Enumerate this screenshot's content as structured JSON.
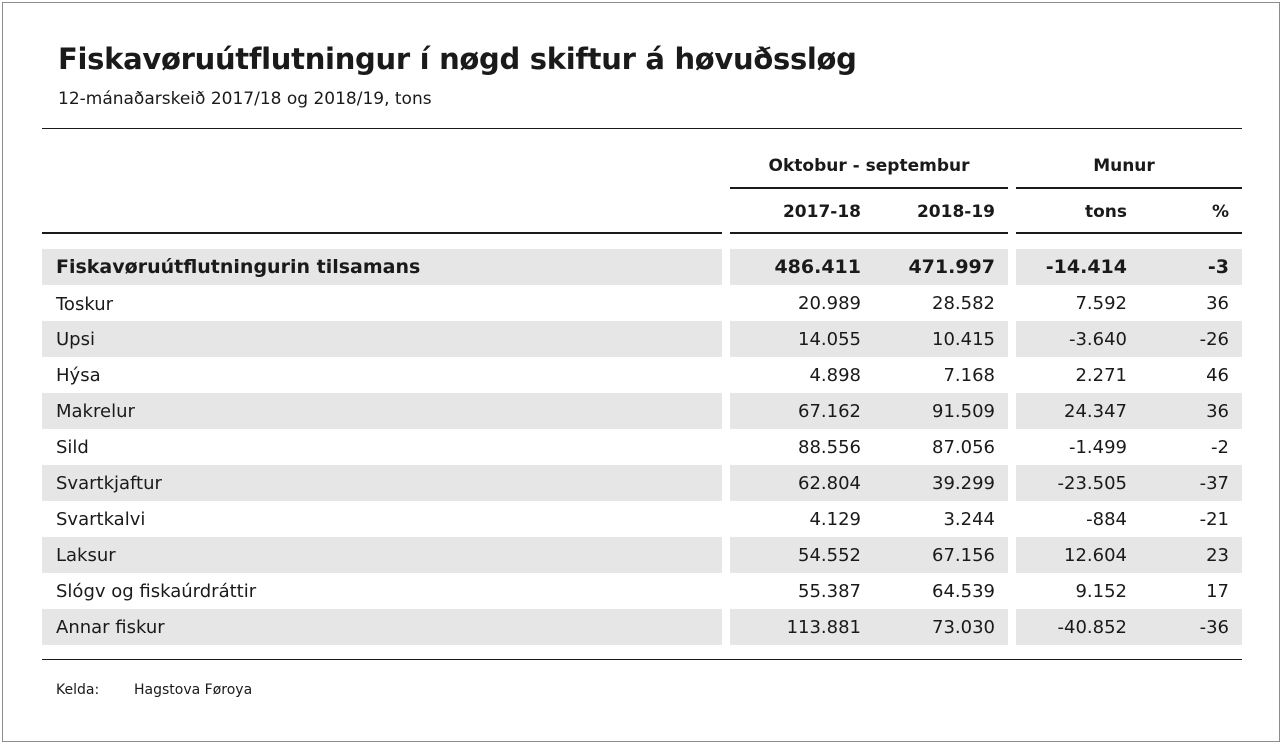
{
  "title": "Fiskavøruútflutningur í nøgd skiftur á høvuðssløg",
  "subtitle": "12-mánaðarskeið 2017/18 og 2018/19, tons",
  "header": {
    "group_period": "Oktobur - septembur",
    "group_diff": "Munur",
    "col_2017": "2017-18",
    "col_2018": "2018-19",
    "col_tons": "tons",
    "col_pct": "%"
  },
  "total": {
    "label": "Fiskavøruútflutningurin tilsamans",
    "v2017": "486.411",
    "v2018": "471.997",
    "tons": "-14.414",
    "pct": "-3"
  },
  "rows": [
    {
      "label": "Toskur",
      "v2017": "20.989",
      "v2018": "28.582",
      "tons": "7.592",
      "pct": "36"
    },
    {
      "label": "Upsi",
      "v2017": "14.055",
      "v2018": "10.415",
      "tons": "-3.640",
      "pct": "-26"
    },
    {
      "label": "Hýsa",
      "v2017": "4.898",
      "v2018": "7.168",
      "tons": "2.271",
      "pct": "46"
    },
    {
      "label": "Makrelur",
      "v2017": "67.162",
      "v2018": "91.509",
      "tons": "24.347",
      "pct": "36"
    },
    {
      "label": "Sild",
      "v2017": "88.556",
      "v2018": "87.056",
      "tons": "-1.499",
      "pct": "-2"
    },
    {
      "label": "Svartkjaftur",
      "v2017": "62.804",
      "v2018": "39.299",
      "tons": "-23.505",
      "pct": "-37"
    },
    {
      "label": "Svartkalvi",
      "v2017": "4.129",
      "v2018": "3.244",
      "tons": "-884",
      "pct": "-21"
    },
    {
      "label": "Laksur",
      "v2017": "54.552",
      "v2018": "67.156",
      "tons": "12.604",
      "pct": "23"
    },
    {
      "label": "Slógv og fiskaúrdráttir",
      "v2017": "55.387",
      "v2018": "64.539",
      "tons": "9.152",
      "pct": "17"
    },
    {
      "label": "Annar fiskur",
      "v2017": "113.881",
      "v2018": "73.030",
      "tons": "-40.852",
      "pct": "-36"
    }
  ],
  "footer": {
    "source_label": "Kelda:",
    "source_value": "Hagstova Føroya"
  }
}
